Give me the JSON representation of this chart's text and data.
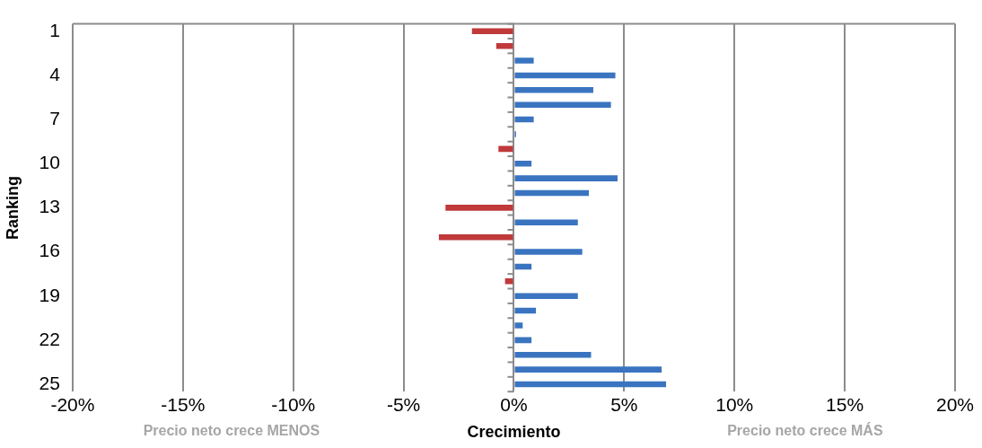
{
  "chart_data": {
    "type": "bar",
    "orientation": "horizontal",
    "xlabel": "Crecimiento",
    "ylabel": "Ranking",
    "categories": [
      "1",
      null,
      null,
      "4",
      null,
      null,
      "7",
      null,
      null,
      "10",
      null,
      null,
      "13",
      null,
      null,
      "16",
      null,
      null,
      "19",
      null,
      null,
      "22",
      null,
      null,
      "25"
    ],
    "values": [
      -1.9,
      -0.8,
      0.9,
      4.6,
      3.6,
      4.4,
      0.9,
      0.1,
      -0.7,
      0.8,
      4.7,
      3.4,
      -3.1,
      2.9,
      -3.4,
      3.1,
      0.8,
      -0.4,
      2.9,
      1.0,
      0.4,
      0.8,
      3.5,
      6.7,
      6.9
    ],
    "colors": [
      "#c0393b",
      "#c0393b",
      "#3a74c0",
      "#3a74c0",
      "#3a74c0",
      "#3a74c0",
      "#3a74c0",
      "#3a74c0",
      "#c0393b",
      "#3a74c0",
      "#3a74c0",
      "#3a74c0",
      "#c0393b",
      "#3a74c0",
      "#c0393b",
      "#3a74c0",
      "#3a74c0",
      "#c0393b",
      "#3a74c0",
      "#3a74c0",
      "#3a74c0",
      "#3a74c0",
      "#3a74c0",
      "#3a74c0",
      "#3a74c0"
    ],
    "xlim": [
      -20,
      20
    ],
    "xticks": [
      {
        "value": -20,
        "label": "-20%"
      },
      {
        "value": -15,
        "label": "-15%"
      },
      {
        "value": -10,
        "label": "-10%"
      },
      {
        "value": -5,
        "label": "-5%"
      },
      {
        "value": 0,
        "label": "0%"
      },
      {
        "value": 5,
        "label": "5%"
      },
      {
        "value": 10,
        "label": "10%"
      },
      {
        "value": 15,
        "label": "15%"
      },
      {
        "value": 20,
        "label": "20%"
      }
    ],
    "grid": "x",
    "legend": false,
    "annotations": [
      "Precio neto crece MENOS",
      "Precio neto crece MÁS"
    ]
  }
}
